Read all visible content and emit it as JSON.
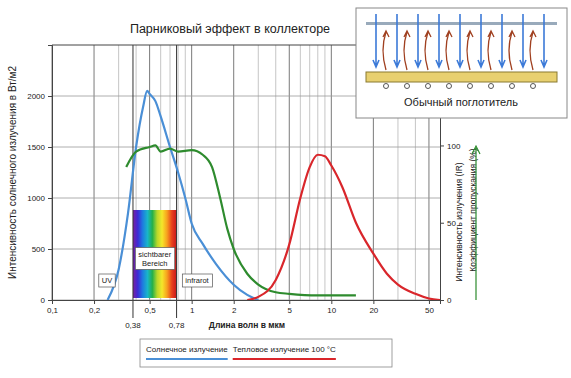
{
  "chart_data": {
    "type": "line",
    "title": "Парниковый эффект в коллекторе",
    "xlabel": "Длина волн в мкм",
    "ylabel": "Интенсивность солнечного излучения в Вт/м2",
    "y2label": [
      "Интенсивность излучения (IR)",
      "Коэффициент пропускания (%)"
    ],
    "log": "x",
    "grid": true,
    "legend": "bottom",
    "xlim": [
      0.1,
      60
    ],
    "xticks": [
      {
        "value": 0.1,
        "label": "0,1"
      },
      {
        "value": 0.2,
        "label": "0,2"
      },
      {
        "value": 0.5,
        "label": "0,5"
      },
      1,
      2,
      5,
      10,
      20,
      50
    ],
    "xgrid_minor": [
      0.3,
      0.4,
      0.6,
      0.7,
      0.8,
      0.9,
      3,
      4,
      6,
      7,
      8,
      9,
      30,
      40
    ],
    "x_markers": [
      {
        "value": 0.38,
        "label": "0,38"
      },
      {
        "value": 0.78,
        "label": "0,78"
      }
    ],
    "ylim": [
      0,
      2500
    ],
    "yticks": [
      0,
      500,
      1000,
      1500,
      2000
    ],
    "y2lim": [
      0,
      165
    ],
    "y2ticks": [
      0,
      50,
      100
    ],
    "regions": [
      "UV",
      "sichtbarer Bereich",
      "infrarot"
    ],
    "inset_label": "Обычный поглотитель",
    "series": [
      {
        "name": "Солнечное излучение",
        "color": "#4a8fd6",
        "axis": "y",
        "x": [
          0.25,
          0.3,
          0.35,
          0.4,
          0.45,
          0.48,
          0.5,
          0.55,
          0.6,
          0.7,
          0.8,
          0.9,
          1.0,
          1.2,
          1.5,
          2,
          2.5,
          3
        ],
        "values": [
          0,
          300,
          850,
          1500,
          1900,
          2050,
          2020,
          1950,
          1800,
          1500,
          1250,
          1000,
          750,
          550,
          350,
          150,
          50,
          0
        ]
      },
      {
        "color": "#2e8b2e",
        "axis": "y2",
        "x": [
          0.34,
          0.4,
          0.5,
          0.55,
          0.6,
          0.7,
          0.8,
          1.0,
          1.2,
          1.4,
          1.6,
          1.8,
          2,
          2.5,
          3,
          4,
          5,
          8,
          15
        ],
        "values": [
          86,
          96,
          99,
          100,
          96,
          98,
          96,
          97,
          94,
          86,
          66,
          46,
          33,
          17,
          10,
          5,
          4,
          3,
          3
        ]
      },
      {
        "name": "Тепловое излучение 100 °C",
        "color": "#d9262b",
        "axis": "y2",
        "x": [
          2.5,
          3,
          4,
          5,
          6,
          7,
          8,
          9,
          10,
          12,
          15,
          20,
          25,
          30,
          40,
          50,
          60
        ],
        "values": [
          0,
          2,
          13,
          36,
          66,
          86,
          94,
          93,
          87,
          73,
          50,
          30,
          17,
          10,
          4,
          1,
          0
        ]
      }
    ]
  }
}
